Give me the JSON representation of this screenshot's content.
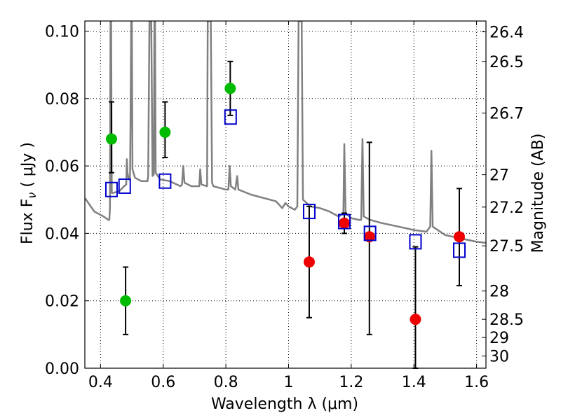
{
  "chart_data": {
    "type": "scatter",
    "xlabel": "Wavelength  λ (μm)",
    "ylabel": "Flux  F",
    "ylabel_sub": "ν",
    "ylabel_unit": "  ( μJy )",
    "y2label": "Magnitude (AB)",
    "xlim": [
      0.35,
      1.63
    ],
    "ylim": [
      0.0,
      0.103
    ],
    "grid": true,
    "x_ticks": [
      0.4,
      0.6,
      0.8,
      1.0,
      1.2,
      1.4,
      1.6
    ],
    "x_tick_labels": [
      "0.4",
      "0.6",
      "0.8",
      "1",
      "1.2",
      "1.4",
      "1.6"
    ],
    "y_ticks": [
      0.0,
      0.02,
      0.04,
      0.06,
      0.08,
      0.1
    ],
    "y_tick_labels": [
      "0.00",
      "0.02",
      "0.04",
      "0.06",
      "0.08",
      "0.10"
    ],
    "y2_ticks": [
      {
        "label": "26.4",
        "flux": 0.0998
      },
      {
        "label": "26.5",
        "flux": 0.091
      },
      {
        "label": "26.7",
        "flux": 0.0757
      },
      {
        "label": "27",
        "flux": 0.0574
      },
      {
        "label": "27.2",
        "flux": 0.0478
      },
      {
        "label": "27.5",
        "flux": 0.0363
      },
      {
        "label": "28",
        "flux": 0.0229
      },
      {
        "label": "28.5",
        "flux": 0.0145
      },
      {
        "label": "29",
        "flux": 0.0091
      },
      {
        "label": "30",
        "flux": 0.0036
      }
    ],
    "colors": {
      "green": "#00bb00",
      "red": "#ee0000",
      "model_square": "#0000cc",
      "template": "#808080",
      "errorbar": "#000000"
    },
    "series": [
      {
        "marker": "green-circle",
        "points": [
          {
            "x": 0.435,
            "y": 0.068,
            "ylo": 0.058,
            "yhi": 0.079
          },
          {
            "x": 0.48,
            "y": 0.02,
            "ylo": 0.01,
            "yhi": 0.03
          },
          {
            "x": 0.606,
            "y": 0.07,
            "ylo": 0.0625,
            "yhi": 0.079
          },
          {
            "x": 0.814,
            "y": 0.083,
            "ylo": 0.075,
            "yhi": 0.091
          }
        ]
      },
      {
        "marker": "red-circle",
        "points": [
          {
            "x": 1.066,
            "y": 0.0315,
            "ylo": 0.015,
            "yhi": 0.048
          },
          {
            "x": 1.178,
            "y": 0.043,
            "ylo": 0.04,
            "yhi": 0.046
          },
          {
            "x": 1.258,
            "y": 0.039,
            "ylo": 0.01,
            "yhi": 0.067
          },
          {
            "x": 1.405,
            "y": 0.0145,
            "ylo": 0.0,
            "yhi": 0.036
          },
          {
            "x": 1.545,
            "y": 0.039,
            "ylo": 0.0245,
            "yhi": 0.0533
          }
        ]
      },
      {
        "marker": "blue-square",
        "points": [
          {
            "x": 0.435,
            "y": 0.053
          },
          {
            "x": 0.477,
            "y": 0.054
          },
          {
            "x": 0.606,
            "y": 0.0555
          },
          {
            "x": 0.815,
            "y": 0.0745
          },
          {
            "x": 1.066,
            "y": 0.0465
          },
          {
            "x": 1.178,
            "y": 0.0435
          },
          {
            "x": 1.26,
            "y": 0.04
          },
          {
            "x": 1.405,
            "y": 0.0375
          },
          {
            "x": 1.545,
            "y": 0.035
          }
        ]
      }
    ],
    "template_spectrum": [
      [
        0.35,
        0.0505
      ],
      [
        0.38,
        0.0465
      ],
      [
        0.41,
        0.045
      ],
      [
        0.425,
        0.044
      ],
      [
        0.428,
        0.044
      ],
      [
        0.43,
        0.0475
      ],
      [
        0.432,
        0.103
      ],
      [
        0.434,
        0.103
      ],
      [
        0.436,
        0.052
      ],
      [
        0.44,
        0.052
      ],
      [
        0.46,
        0.0525
      ],
      [
        0.475,
        0.054
      ],
      [
        0.482,
        0.0545
      ],
      [
        0.484,
        0.062
      ],
      [
        0.486,
        0.058
      ],
      [
        0.49,
        0.056
      ],
      [
        0.494,
        0.056
      ],
      [
        0.496,
        0.075
      ],
      [
        0.498,
        0.103
      ],
      [
        0.5,
        0.103
      ],
      [
        0.502,
        0.059
      ],
      [
        0.51,
        0.0565
      ],
      [
        0.53,
        0.0555
      ],
      [
        0.55,
        0.0555
      ],
      [
        0.552,
        0.057
      ],
      [
        0.556,
        0.103
      ],
      [
        0.562,
        0.103
      ],
      [
        0.566,
        0.057
      ],
      [
        0.57,
        0.0575
      ],
      [
        0.572,
        0.103
      ],
      [
        0.574,
        0.103
      ],
      [
        0.576,
        0.058
      ],
      [
        0.59,
        0.056
      ],
      [
        0.62,
        0.0555
      ],
      [
        0.655,
        0.054
      ],
      [
        0.66,
        0.0545
      ],
      [
        0.664,
        0.06
      ],
      [
        0.668,
        0.055
      ],
      [
        0.69,
        0.054
      ],
      [
        0.715,
        0.054
      ],
      [
        0.718,
        0.059
      ],
      [
        0.722,
        0.0545
      ],
      [
        0.74,
        0.054
      ],
      [
        0.742,
        0.103
      ],
      [
        0.752,
        0.103
      ],
      [
        0.756,
        0.055
      ],
      [
        0.76,
        0.054
      ],
      [
        0.78,
        0.0535
      ],
      [
        0.8,
        0.053
      ],
      [
        0.808,
        0.053
      ],
      [
        0.812,
        0.06
      ],
      [
        0.816,
        0.054
      ],
      [
        0.83,
        0.053
      ],
      [
        0.836,
        0.057
      ],
      [
        0.84,
        0.053
      ],
      [
        0.88,
        0.0515
      ],
      [
        0.92,
        0.0505
      ],
      [
        0.96,
        0.0495
      ],
      [
        0.98,
        0.0475
      ],
      [
        0.99,
        0.049
      ],
      [
        1.0,
        0.048
      ],
      [
        1.02,
        0.047
      ],
      [
        1.028,
        0.048
      ],
      [
        1.032,
        0.103
      ],
      [
        1.042,
        0.103
      ],
      [
        1.046,
        0.05
      ],
      [
        1.07,
        0.048
      ],
      [
        1.1,
        0.0475
      ],
      [
        1.13,
        0.0465
      ],
      [
        1.16,
        0.045
      ],
      [
        1.175,
        0.046
      ],
      [
        1.178,
        0.0665
      ],
      [
        1.182,
        0.046
      ],
      [
        1.2,
        0.0445
      ],
      [
        1.225,
        0.044
      ],
      [
        1.232,
        0.044
      ],
      [
        1.236,
        0.068
      ],
      [
        1.24,
        0.045
      ],
      [
        1.26,
        0.044
      ],
      [
        1.3,
        0.043
      ],
      [
        1.35,
        0.042
      ],
      [
        1.4,
        0.041
      ],
      [
        1.44,
        0.0405
      ],
      [
        1.452,
        0.042
      ],
      [
        1.456,
        0.0645
      ],
      [
        1.46,
        0.042
      ],
      [
        1.5,
        0.0395
      ],
      [
        1.55,
        0.0385
      ],
      [
        1.6,
        0.0375
      ],
      [
        1.63,
        0.0372
      ]
    ]
  }
}
